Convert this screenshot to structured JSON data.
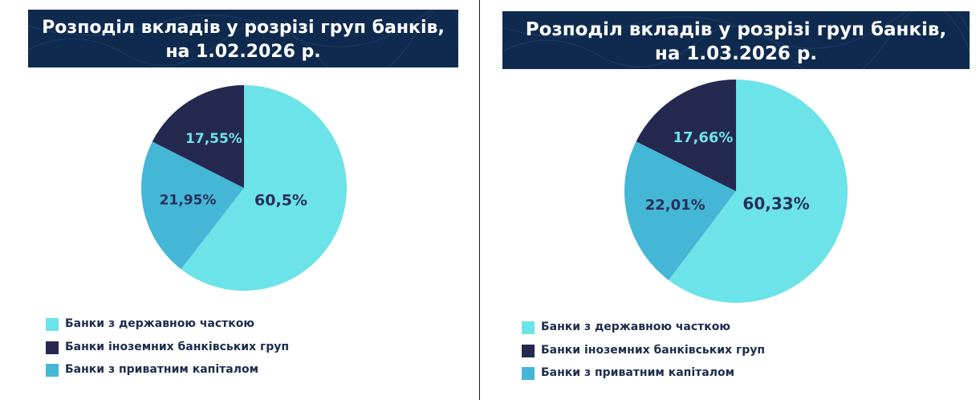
{
  "panels": [
    {
      "title_line1": "Розподіл вкладів у розрізі груп банків,",
      "title_line2": "на 1.02.2026 р."
    },
    {
      "title_line1": "Розподіл вкладів у розрізі груп банків,",
      "title_line2": "на 1.03.2026 р."
    }
  ],
  "legend": [
    {
      "label": "Банки з державною часткою",
      "color": "#6ce3e8"
    },
    {
      "label": "Банки іноземних банківських груп",
      "color": "#25284f"
    },
    {
      "label": "Банки з приватним капіталом",
      "color": "#44b6d6"
    }
  ],
  "chart_data": [
    {
      "type": "pie",
      "title": "Розподіл вкладів у розрізі груп банків, на 1.02.2026 р.",
      "categories": [
        "Банки з державною часткою",
        "Банки з приватним капіталом",
        "Банки іноземних банківських груп"
      ],
      "values": [
        60.5,
        21.95,
        17.55
      ],
      "labels": [
        "60,5%",
        "21,95%",
        "17,55%"
      ],
      "colors": [
        "#6ce3e8",
        "#44b6d6",
        "#25284f"
      ],
      "label_colors": [
        "#2a2f5a",
        "#2a2f5a",
        "#6ce3e8"
      ],
      "legend_position": "bottom-left"
    },
    {
      "type": "pie",
      "title": "Розподіл вкладів у розрізі груп банків, на 1.03.2026 р.",
      "categories": [
        "Банки з державною часткою",
        "Банки з приватним капіталом",
        "Банки іноземних банківських груп"
      ],
      "values": [
        60.33,
        22.01,
        17.66
      ],
      "labels": [
        "60,33%",
        "22,01%",
        "17,66%"
      ],
      "colors": [
        "#6ce3e8",
        "#44b6d6",
        "#25284f"
      ],
      "label_colors": [
        "#2a2f5a",
        "#2a2f5a",
        "#6ce3e8"
      ],
      "legend_position": "bottom-left"
    }
  ]
}
